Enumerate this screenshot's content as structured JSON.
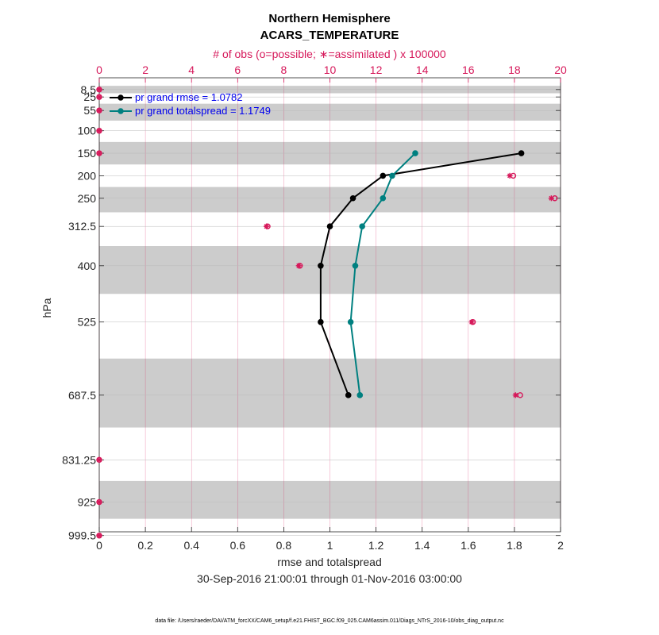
{
  "colors": {
    "rmse": "#000000",
    "spread": "#008080",
    "obs": "#d6185a",
    "legend_text": "#0000ee",
    "band": "#cccccc",
    "grid": "#dddddd"
  },
  "chart_data": {
    "type": "line",
    "title": "Northern Hemisphere",
    "subtitle": "ACARS_TEMPERATURE",
    "xlabel": "rmse and totalspread",
    "ylabel": "hPa",
    "date_range": "30-Sep-2016 21:00:01 through 01-Nov-2016 03:00:00",
    "footnote": "data file: /Users/raeder/DAI/ATM_forcXX/CAM6_setup/f.e21.FHIST_BGC.f09_025.CAM6assim.011/Diags_NTrS_2016-10/obs_diag_output.nc",
    "xlim": [
      0,
      2
    ],
    "x_ticks": [
      "0",
      "0.2",
      "0.4",
      "0.6",
      "0.8",
      "1",
      "1.2",
      "1.4",
      "1.6",
      "1.8",
      "2"
    ],
    "top_axis": {
      "label": "# of obs (o=possible; ∗=assimilated ) x 100000",
      "lim": [
        0,
        20
      ],
      "ticks": [
        "0",
        "2",
        "4",
        "6",
        "8",
        "10",
        "12",
        "14",
        "16",
        "18",
        "20"
      ]
    },
    "levels": [
      8.5,
      25,
      55,
      100,
      150,
      200,
      250,
      312.5,
      400,
      525,
      687.5,
      831.25,
      925,
      999.5
    ],
    "level_labels": [
      "8.5",
      "25",
      "55",
      "100",
      "150",
      "200",
      "250",
      "312.5",
      "400",
      "525",
      "687.5",
      "831.25",
      "925",
      "999.5"
    ],
    "legend": {
      "position": "top-left",
      "entries": [
        "pr grand rmse = 1.0782",
        "pr grand totalspread = 1.1749"
      ]
    },
    "series": [
      {
        "name": "rmse",
        "levels": [
          150,
          200,
          250,
          312.5,
          400,
          525,
          687.5
        ],
        "values": [
          1.83,
          1.23,
          1.1,
          1.0,
          0.96,
          0.96,
          1.08
        ]
      },
      {
        "name": "totalspread",
        "levels": [
          150,
          200,
          250,
          312.5,
          400,
          525,
          687.5
        ],
        "values": [
          1.37,
          1.27,
          1.23,
          1.14,
          1.11,
          1.09,
          1.13
        ]
      }
    ],
    "obs_possible": [
      0.0,
      0.0,
      0.0,
      0.0,
      0.0,
      17.95,
      19.75,
      7.3,
      8.7,
      16.2,
      18.25,
      0.0,
      0.0,
      0.0
    ],
    "obs_assimilated": [
      0.0,
      0.0,
      0.0,
      0.0,
      0.0,
      17.8,
      19.6,
      7.25,
      8.65,
      16.15,
      18.05,
      0.0,
      0.0,
      0.0
    ]
  }
}
